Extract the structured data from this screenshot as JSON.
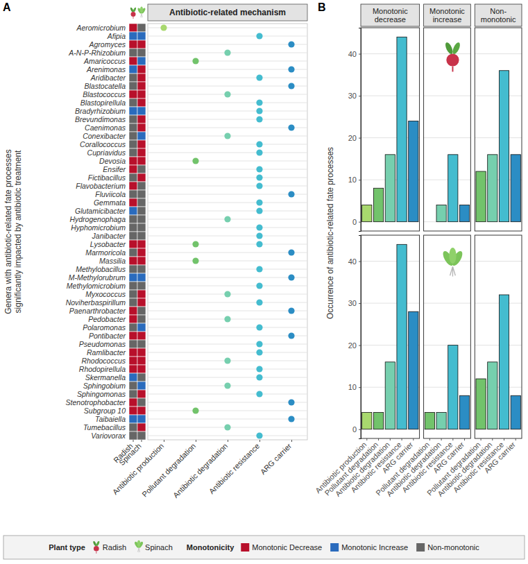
{
  "chart_data": [
    {
      "type": "dot",
      "panel": "A",
      "title": "Antibiotic-related mechanism",
      "y_label": "Genera with antibiotic-related fate processes significantly impacted by antibiotic treatment",
      "plants": [
        "Radish",
        "Spinach"
      ],
      "x_categories": [
        "Antibiotic production",
        "Pollutant degradation",
        "Antibiotic degradation",
        "Antibiotic resistance",
        "ARG carrier"
      ],
      "colors": [
        "#a8d86e",
        "#72c36b",
        "#76cfae",
        "#44bccf",
        "#2b8dc4"
      ],
      "categories": [
        "Aeromicrobium",
        "Afipia",
        "Agromyces",
        "A-N-P-Rhizobium",
        "Amaricoccus",
        "Arenimonas",
        "Aridibacter",
        "Blastocatella",
        "Blastococcus",
        "Blastopirellula",
        "Bradyrhizobium",
        "Brevundimonas",
        "Caenimonas",
        "Conexibacter",
        "Corallococcus",
        "Cupriavidus",
        "Devosia",
        "Ensifer",
        "Fictibacillus",
        "Flavobacterium",
        "Fluviicola",
        "Gemmata",
        "Glutamicibacter",
        "Hydrogenophaga",
        "Hyphomicrobium",
        "Janibacter",
        "Lysobacter",
        "Marmoricola",
        "Massilia",
        "Methylobacillus",
        "M-Methylorubrum",
        "Methylomicrobium",
        "Myxococcus",
        "Noviherbaspirillum",
        "Paenarthrobacter",
        "Pedobacter",
        "Polaromonas",
        "Pontibacter",
        "Pseudomonas",
        "Ramlibacter",
        "Rhodococcus",
        "Rhodopirellula",
        "Skermanella",
        "Sphingobium",
        "Sphingomonas",
        "Stenotrophobacter",
        "Subgroup 10",
        "Taibaiella",
        "Tumebacillus",
        "Variovorax"
      ],
      "mechanisms": [
        [
          "Antibiotic production"
        ],
        [
          "Antibiotic resistance"
        ],
        [
          "ARG carrier"
        ],
        [
          "Antibiotic degradation"
        ],
        [
          "Pollutant degradation"
        ],
        [
          "ARG carrier"
        ],
        [
          "Antibiotic resistance"
        ],
        [
          "ARG carrier"
        ],
        [
          "Antibiotic degradation"
        ],
        [
          "Antibiotic resistance"
        ],
        [
          "Antibiotic resistance"
        ],
        [
          "Antibiotic resistance"
        ],
        [
          "ARG carrier"
        ],
        [
          "Antibiotic degradation"
        ],
        [
          "Antibiotic resistance"
        ],
        [
          "Antibiotic resistance"
        ],
        [
          "Pollutant degradation"
        ],
        [
          "Antibiotic resistance"
        ],
        [
          "Antibiotic resistance"
        ],
        [
          "Antibiotic resistance"
        ],
        [
          "ARG carrier"
        ],
        [
          "Antibiotic resistance"
        ],
        [
          "Antibiotic resistance"
        ],
        [
          "Antibiotic degradation"
        ],
        [
          "Antibiotic resistance"
        ],
        [
          "Antibiotic resistance"
        ],
        [
          "Pollutant degradation",
          "Antibiotic resistance"
        ],
        [
          "ARG carrier"
        ],
        [
          "Pollutant degradation"
        ],
        [
          "Antibiotic resistance"
        ],
        [
          "ARG carrier"
        ],
        [
          "Antibiotic resistance"
        ],
        [
          "Antibiotic degradation"
        ],
        [
          "Antibiotic resistance"
        ],
        [
          "ARG carrier"
        ],
        [
          "Antibiotic degradation"
        ],
        [
          "Antibiotic resistance"
        ],
        [
          "ARG carrier"
        ],
        [
          "Antibiotic resistance"
        ],
        [
          "Antibiotic resistance"
        ],
        [
          "Antibiotic degradation"
        ],
        [
          "Antibiotic resistance"
        ],
        [
          "Antibiotic resistance"
        ],
        [
          "Antibiotic degradation"
        ],
        [
          "Antibiotic resistance"
        ],
        [
          "ARG carrier"
        ],
        [
          "Pollutant degradation"
        ],
        [
          "ARG carrier"
        ],
        [
          "Antibiotic degradation"
        ],
        [
          "Antibiotic resistance"
        ]
      ],
      "monotonicity": [
        [
          "Monotonic Decrease",
          "Monotonic Increase",
          "Monotonic Decrease",
          "Non-monotonic",
          "Monotonic Decrease",
          "Monotonic Increase",
          "Non-monotonic",
          "Non-monotonic",
          "Monotonic Decrease",
          "Non-monotonic",
          "Monotonic Increase",
          "Non-monotonic",
          "Non-monotonic",
          "Non-monotonic",
          "Non-monotonic",
          "Non-monotonic",
          "Monotonic Decrease",
          "Monotonic Decrease",
          "Non-monotonic",
          "Monotonic Decrease",
          "Non-monotonic",
          "Monotonic Decrease",
          "Monotonic Increase",
          "Non-monotonic",
          "Non-monotonic",
          "Non-monotonic",
          "Monotonic Decrease",
          "Non-monotonic",
          "Monotonic Decrease",
          "Non-monotonic",
          "Monotonic Increase",
          "Non-monotonic",
          "Non-monotonic",
          "Non-monotonic",
          "Monotonic Decrease",
          "Monotonic Decrease",
          "Non-monotonic",
          "Monotonic Decrease",
          "Non-monotonic",
          "Monotonic Decrease",
          "Monotonic Decrease",
          "Monotonic Decrease",
          "Monotonic Increase",
          "Non-monotonic",
          "Non-monotonic",
          "Monotonic Decrease",
          "Monotonic Decrease",
          "Monotonic Increase",
          "Non-monotonic",
          "Non-monotonic"
        ],
        [
          "Non-monotonic",
          "Monotonic Increase",
          "Monotonic Decrease",
          "Non-monotonic",
          "Monotonic Increase",
          "Monotonic Decrease",
          "Monotonic Decrease",
          "Monotonic Decrease",
          "Monotonic Decrease",
          "Monotonic Decrease",
          "Monotonic Increase",
          "Monotonic Decrease",
          "Monotonic Decrease",
          "Monotonic Increase",
          "Monotonic Decrease",
          "Monotonic Decrease",
          "Monotonic Decrease",
          "Non-monotonic",
          "Monotonic Decrease",
          "Non-monotonic",
          "Non-monotonic",
          "Non-monotonic",
          "Non-monotonic",
          "Non-monotonic",
          "Non-monotonic",
          "Non-monotonic",
          "Monotonic Decrease",
          "Monotonic Decrease",
          "Monotonic Decrease",
          "Non-monotonic",
          "Monotonic Increase",
          "Non-monotonic",
          "Monotonic Decrease",
          "Monotonic Decrease",
          "Non-monotonic",
          "Non-monotonic",
          "Monotonic Increase",
          "Monotonic Decrease",
          "Non-monotonic",
          "Monotonic Decrease",
          "Monotonic Decrease",
          "Monotonic Decrease",
          "Non-monotonic",
          "Monotonic Increase",
          "Monotonic Decrease",
          "Non-monotonic",
          "Monotonic Decrease",
          "Monotonic Increase",
          "Monotonic Decrease",
          "Non-monotonic"
        ]
      ],
      "monotonicity_levels": [
        {
          "name": "Monotonic Decrease",
          "color": "#b8102b"
        },
        {
          "name": "Monotonic Increase",
          "color": "#2a6bbd"
        },
        {
          "name": "Non-monotonic",
          "color": "#666666"
        }
      ],
      "plant_title": "Plant type",
      "monotonicity_title": "Monotonicity",
      "legend": "bottom"
    },
    {
      "type": "bar",
      "panel": "B",
      "y_label": "Occurrence of antibiotic-related fate processes",
      "ylim": [
        -2.2,
        46.2
      ],
      "yticks": [
        0,
        10,
        20,
        30,
        40
      ],
      "grid": true,
      "panels": [
        {
          "title": "Monotonic decrease",
          "categories": [
            "Antibiotic production",
            "Pollutant degradation",
            "Antibiotic degradation",
            "Antibiotic resistance",
            "ARG carrier"
          ],
          "colors": [
            "#a8d86e",
            "#72c36b",
            "#76cfae",
            "#44bccf",
            "#2b8dc4"
          ],
          "series": [
            {
              "name": "Radish",
              "values": [
                4,
                8,
                16,
                44,
                24
              ]
            },
            {
              "name": "Spinach",
              "values": [
                4,
                4,
                16,
                44,
                28
              ]
            }
          ]
        },
        {
          "title": "Monotonic increase",
          "categories": [
            "Pollutant degradation",
            "Antibiotic degradation",
            "Antibiotic resistance",
            "ARG carrier"
          ],
          "colors": [
            "#72c36b",
            "#76cfae",
            "#44bccf",
            "#2b8dc4"
          ],
          "series": [
            {
              "name": "Radish",
              "values": [
                0,
                4,
                16,
                4
              ]
            },
            {
              "name": "Spinach",
              "values": [
                4,
                4,
                20,
                8
              ]
            }
          ]
        },
        {
          "title": "Non-monotonic",
          "categories": [
            "Pollutant degradation",
            "Antibiotic degradation",
            "Antibiotic resistance",
            "ARG carrier"
          ],
          "colors": [
            "#72c36b",
            "#76cfae",
            "#44bccf",
            "#2b8dc4"
          ],
          "series": [
            {
              "name": "Radish",
              "values": [
                12,
                16,
                36,
                16
              ]
            },
            {
              "name": "Spinach",
              "values": [
                12,
                16,
                32,
                8
              ]
            }
          ]
        }
      ]
    }
  ]
}
